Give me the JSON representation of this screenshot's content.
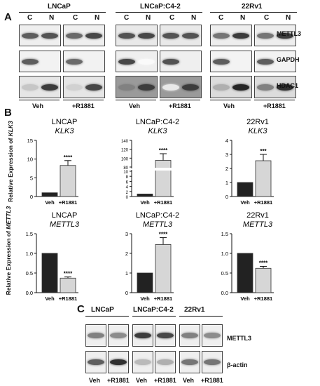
{
  "panels": {
    "a": "A",
    "b": "B",
    "c": "C"
  },
  "panelA": {
    "cell_lines": [
      "LNCaP",
      "LNCaP:C4-2",
      "22Rv1"
    ],
    "lane_labels": [
      "C",
      "N",
      "C",
      "N"
    ],
    "row_labels": [
      "METTL3",
      "GAPDH",
      "HDAC1"
    ],
    "treatments": [
      "Veh",
      "+R1881"
    ]
  },
  "panelB": {
    "y_label_top_prefix": "Relative Expression of ",
    "y_label_top_gene": "KLK3",
    "y_label_bottom_prefix": "Relative Expression of ",
    "y_label_bottom_gene": "METTL3",
    "categories": [
      "Veh",
      "+R1881"
    ]
  },
  "panelC": {
    "cell_lines": [
      "LNCaP",
      "LNCaP:C4-2",
      "22Rv1"
    ],
    "row_labels": [
      "METTL3",
      "β-actin"
    ],
    "lanes": [
      "Veh",
      "+R1881"
    ]
  },
  "chart_data": [
    {
      "type": "bar",
      "title": "LNCAP",
      "subtitle": "KLK3",
      "categories": [
        "Veh",
        "+R1881"
      ],
      "values": [
        1,
        8.3
      ],
      "errors": [
        0,
        1.3
      ],
      "ylim": [
        0,
        15
      ],
      "ticks": [
        0,
        5,
        10,
        15
      ],
      "significance": "****"
    },
    {
      "type": "bar",
      "title": "LNCaP:C4-2",
      "subtitle": "KLK3",
      "categories": [
        "Veh",
        "+R1881"
      ],
      "values": [
        1,
        95
      ],
      "errors": [
        0,
        15
      ],
      "ylim": [
        0,
        140
      ],
      "ticks": [
        0,
        2,
        4,
        6,
        8,
        10,
        80,
        100,
        120,
        140
      ],
      "broken_axis": [
        10,
        80
      ],
      "significance": "****"
    },
    {
      "type": "bar",
      "title": "22Rv1",
      "subtitle": "KLK3",
      "categories": [
        "Veh",
        "+R1881"
      ],
      "values": [
        1,
        2.55
      ],
      "errors": [
        0,
        0.45
      ],
      "ylim": [
        0,
        4
      ],
      "ticks": [
        0,
        1,
        2,
        3,
        4
      ],
      "significance": "***"
    },
    {
      "type": "bar",
      "title": "LNCAP",
      "subtitle": "METTL3",
      "categories": [
        "Veh",
        "+R1881"
      ],
      "values": [
        1,
        0.37
      ],
      "errors": [
        0,
        0.03
      ],
      "ylim": [
        0,
        1.5
      ],
      "ticks": [
        0.0,
        0.5,
        1.0,
        1.5
      ],
      "significance": "****"
    },
    {
      "type": "bar",
      "title": "LNCaP:C4-2",
      "subtitle": "METTL3",
      "categories": [
        "Veh",
        "+R1881"
      ],
      "values": [
        1,
        2.45
      ],
      "errors": [
        0,
        0.35
      ],
      "ylim": [
        0,
        3
      ],
      "ticks": [
        0,
        1,
        2,
        3
      ],
      "significance": "****"
    },
    {
      "type": "bar",
      "title": "22Rv1",
      "subtitle": "METTL3",
      "categories": [
        "Veh",
        "+R1881"
      ],
      "values": [
        1,
        0.62
      ],
      "errors": [
        0,
        0.05
      ],
      "ylim": [
        0,
        1.5
      ],
      "ticks": [
        0.0,
        0.5,
        1.0,
        1.5
      ],
      "significance": "****"
    }
  ]
}
